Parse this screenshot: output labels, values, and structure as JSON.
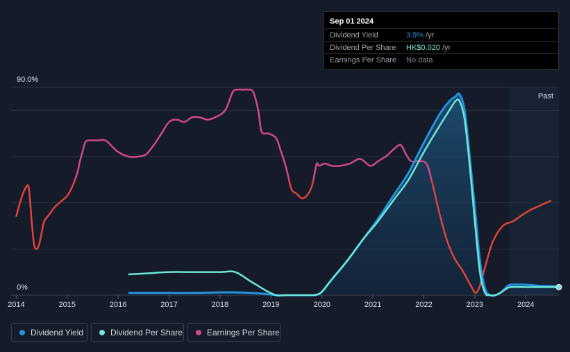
{
  "tooltip": {
    "date": "Sep 01 2024",
    "rows": [
      {
        "label": "Dividend Yield",
        "value": "3.9%",
        "unit": " /yr",
        "color": "#2394df"
      },
      {
        "label": "Dividend Per Share",
        "value": "HK$0.020",
        "unit": " /yr",
        "color": "#6ee7d6"
      },
      {
        "label": "Earnings Per Share",
        "value": "No data",
        "unit": "",
        "color": "#7d8590"
      }
    ]
  },
  "past_label": "Past",
  "legend": [
    {
      "label": "Dividend Yield",
      "color": "#2394df"
    },
    {
      "label": "Dividend Per Share",
      "color": "#6ee7d6"
    },
    {
      "label": "Earnings Per Share",
      "color": "#d04a8c"
    }
  ],
  "chart_data": {
    "type": "line",
    "title": "",
    "xlabel": "",
    "ylabel": "",
    "xlim": [
      2013.9,
      2024.65
    ],
    "ylim": [
      0,
      90
    ],
    "y_tick_labels": [
      "0%",
      "90.0%"
    ],
    "x_ticks": [
      2014,
      2015,
      2016,
      2017,
      2018,
      2019,
      2020,
      2021,
      2022,
      2023,
      2024
    ],
    "x_tick_labels": [
      "2014",
      "2015",
      "2016",
      "2017",
      "2018",
      "2019",
      "2020",
      "2021",
      "2022",
      "2023",
      "2024"
    ],
    "gridlines_y": [
      0,
      20,
      40,
      60,
      80,
      90
    ],
    "grid": true,
    "past_region_start": 2023.67,
    "earnings_color_split": {
      "threshold": 50,
      "above_color": "#d04a8c",
      "below_color": "#e0433f"
    },
    "series": [
      {
        "name": "Earnings Per Share",
        "color": "#d04a8c",
        "x": [
          2014.0,
          2014.1,
          2014.2,
          2014.25,
          2014.3,
          2014.35,
          2014.4,
          2014.45,
          2014.5,
          2014.55,
          2014.65,
          2014.75,
          2014.9,
          2015.0,
          2015.1,
          2015.2,
          2015.25,
          2015.3,
          2015.35,
          2015.4,
          2015.45,
          2015.6,
          2015.75,
          2015.9,
          2016.0,
          2016.2,
          2016.4,
          2016.55,
          2016.7,
          2016.85,
          2017.0,
          2017.15,
          2017.3,
          2017.45,
          2017.6,
          2017.75,
          2017.9,
          2018.1,
          2018.25,
          2018.35,
          2018.45,
          2018.55,
          2018.65,
          2018.75,
          2018.8,
          2018.85,
          2018.95,
          2019.1,
          2019.2,
          2019.3,
          2019.4,
          2019.5,
          2019.6,
          2019.7,
          2019.8,
          2019.85,
          2019.9,
          2019.95,
          2020.05,
          2020.2,
          2020.35,
          2020.55,
          2020.75,
          2020.95,
          2021.1,
          2021.25,
          2021.35,
          2021.45,
          2021.55,
          2021.65,
          2021.75,
          2021.9,
          2022.05,
          2022.15,
          2022.3,
          2022.45,
          2022.6,
          2022.75,
          2022.85,
          2022.95,
          2023.02,
          2023.1,
          2023.2,
          2023.35,
          2023.55,
          2023.75,
          2023.95,
          2024.1,
          2024.3,
          2024.5
        ],
        "values": [
          34,
          42,
          47,
          46,
          33,
          22,
          20,
          22,
          27,
          32,
          35,
          38,
          41,
          43,
          47,
          53,
          58,
          62,
          66,
          67,
          67,
          67,
          67,
          64,
          62,
          60,
          60,
          61,
          65,
          70,
          75,
          76,
          75,
          77,
          77,
          76,
          77,
          80,
          88,
          89,
          89,
          89,
          88,
          80,
          72,
          70,
          70,
          68,
          62,
          55,
          46,
          44,
          42,
          43,
          47,
          52,
          57,
          56,
          57,
          56,
          56,
          57,
          59,
          56,
          58,
          60,
          62,
          64,
          65,
          61,
          58,
          58,
          57,
          50,
          36,
          24,
          16,
          11,
          7,
          3,
          1,
          4,
          12,
          23,
          30,
          32,
          35,
          37,
          39,
          41
        ]
      },
      {
        "name": "Dividend Yield",
        "color": "#2394df",
        "x": [
          2016.2,
          2016.6,
          2017.0,
          2017.5,
          2018.0,
          2018.3,
          2018.6,
          2018.9,
          2019.1,
          2019.3,
          2019.6,
          2019.8,
          2019.9,
          2020.0,
          2020.2,
          2020.5,
          2020.8,
          2021.1,
          2021.4,
          2021.7,
          2022.0,
          2022.3,
          2022.5,
          2022.62,
          2022.7,
          2022.8,
          2022.9,
          2023.0,
          2023.1,
          2023.2,
          2023.3,
          2023.4,
          2023.5,
          2023.6,
          2023.7,
          2024.0,
          2024.3,
          2024.6
        ],
        "values": [
          1,
          1,
          1,
          1,
          1.2,
          1.2,
          1,
          0.5,
          0,
          0,
          0,
          0,
          0.2,
          1.5,
          7,
          15,
          24,
          33,
          43,
          53,
          66,
          78,
          84,
          86,
          87,
          80,
          60,
          38,
          15,
          3,
          0,
          0,
          1,
          3,
          4.5,
          4.5,
          4,
          3.9
        ]
      },
      {
        "name": "Dividend Per Share",
        "color": "#6ee7d6",
        "x": [
          2016.2,
          2016.6,
          2017.0,
          2017.5,
          2018.0,
          2018.3,
          2018.6,
          2018.9,
          2019.1,
          2019.3,
          2019.6,
          2019.8,
          2019.9,
          2020.0,
          2020.2,
          2020.5,
          2020.8,
          2021.1,
          2021.4,
          2021.7,
          2022.0,
          2022.3,
          2022.5,
          2022.62,
          2022.7,
          2022.8,
          2022.9,
          2023.0,
          2023.1,
          2023.2,
          2023.3,
          2023.4,
          2023.5,
          2023.6,
          2023.7,
          2024.0,
          2024.3,
          2024.6
        ],
        "values": [
          9,
          9.5,
          10,
          10,
          10,
          10,
          6,
          2,
          0,
          0,
          0,
          0,
          0.2,
          1.5,
          7,
          15,
          24,
          32,
          41,
          50,
          62,
          73,
          80,
          84,
          84,
          76,
          56,
          32,
          10,
          1,
          0,
          0,
          1,
          2.5,
          3.5,
          3.5,
          3.5,
          3.5
        ]
      }
    ]
  }
}
